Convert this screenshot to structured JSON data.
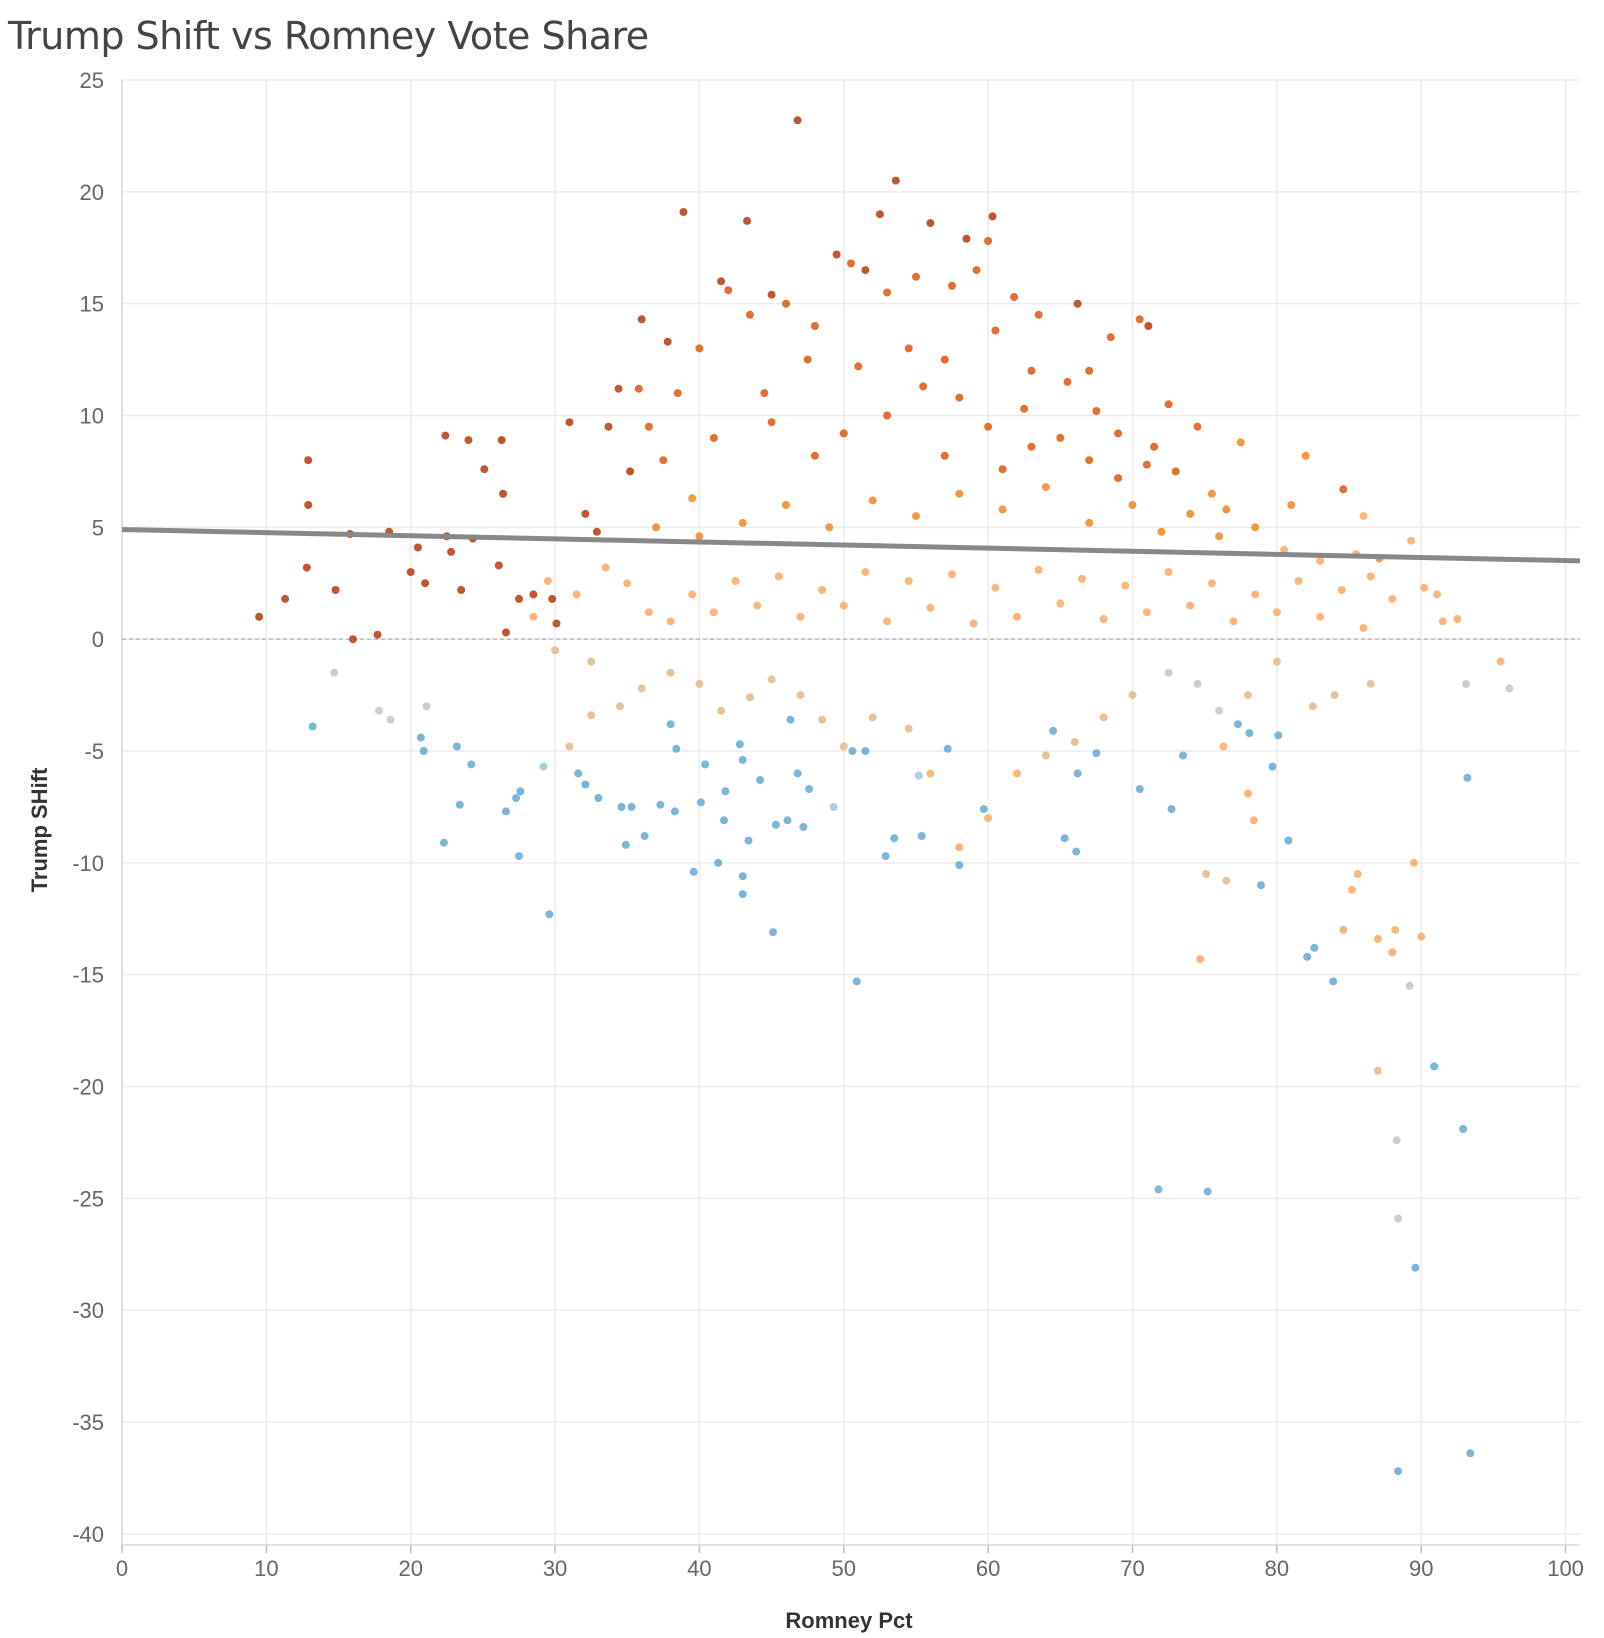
{
  "chart_data": {
    "type": "scatter",
    "title": "Trump Shift vs Romney Vote Share",
    "xlabel": "Romney Pct",
    "ylabel": "Trump SHift",
    "xlim": [
      0,
      101
    ],
    "ylim": [
      -40.5,
      25
    ],
    "x_ticks": [
      0,
      10,
      20,
      30,
      40,
      50,
      60,
      70,
      80,
      90,
      100
    ],
    "y_ticks": [
      25,
      20,
      15,
      10,
      5,
      0,
      -5,
      -10,
      -15,
      -20,
      -25,
      -30,
      -35,
      -40
    ],
    "grid": true,
    "zero_line": 0,
    "trend_line": {
      "x": [
        0,
        101
      ],
      "y": [
        4.9,
        3.5
      ]
    },
    "colors": {
      "grid": "#ebebeb",
      "trend": "#888888",
      "blue": "#6baed6",
      "light_blue": "#9ecae1",
      "gray": "#c6c9c4",
      "tan": "#e3bc8f",
      "light_orange": "#fdae6b",
      "orange": "#f28e2b",
      "dark_orange": "#e0601a",
      "red_orange": "#b8451a"
    },
    "points": [
      [
        46.8,
        23.2,
        1
      ],
      [
        53.6,
        20.5,
        1
      ],
      [
        38.9,
        19.1,
        1
      ],
      [
        43.3,
        18.7,
        1
      ],
      [
        52.5,
        19.0,
        1
      ],
      [
        56.0,
        18.6,
        1
      ],
      [
        60.3,
        18.9,
        1
      ],
      [
        58.5,
        17.9,
        1
      ],
      [
        49.5,
        17.2,
        1
      ],
      [
        51.5,
        16.5,
        1
      ],
      [
        41.5,
        16.0,
        1
      ],
      [
        45.0,
        15.4,
        1
      ],
      [
        36.0,
        14.3,
        1
      ],
      [
        66.2,
        15.0,
        1
      ],
      [
        71.1,
        14.0,
        1
      ],
      [
        37.8,
        13.3,
        1
      ],
      [
        34.4,
        11.2,
        1
      ],
      [
        33.7,
        9.5,
        1
      ],
      [
        31.0,
        9.7,
        1
      ],
      [
        26.3,
        8.9,
        1
      ],
      [
        24.0,
        8.9,
        1
      ],
      [
        22.4,
        9.1,
        1
      ],
      [
        25.1,
        7.6,
        1
      ],
      [
        26.4,
        6.5,
        1
      ],
      [
        12.9,
        8.0,
        1
      ],
      [
        12.9,
        6.0,
        1
      ],
      [
        9.5,
        1.0,
        0
      ],
      [
        11.3,
        1.8,
        0
      ],
      [
        12.8,
        3.2,
        0
      ],
      [
        14.8,
        2.2,
        0
      ],
      [
        16.0,
        0.0,
        0
      ],
      [
        17.7,
        0.2,
        0
      ],
      [
        15.8,
        4.7,
        0
      ],
      [
        18.5,
        4.8,
        0
      ],
      [
        20.5,
        4.1,
        0
      ],
      [
        22.5,
        4.6,
        1
      ],
      [
        22.8,
        3.9,
        1
      ],
      [
        24.3,
        4.5,
        0
      ],
      [
        26.1,
        3.3,
        0
      ],
      [
        20.0,
        3.0,
        0
      ],
      [
        21.0,
        2.5,
        0
      ],
      [
        23.5,
        2.2,
        0
      ],
      [
        26.6,
        0.3,
        0
      ],
      [
        27.5,
        1.8,
        0
      ],
      [
        28.5,
        2.0,
        0
      ],
      [
        29.8,
        1.8,
        1
      ],
      [
        30.1,
        0.7,
        0
      ],
      [
        32.1,
        5.6,
        0
      ],
      [
        32.9,
        4.8,
        1
      ],
      [
        35.2,
        7.5,
        1
      ],
      [
        18.6,
        -3.6,
        2
      ],
      [
        17.8,
        -3.2,
        2
      ],
      [
        14.7,
        -1.5,
        2
      ],
      [
        21.1,
        -3.0,
        2
      ],
      [
        13.2,
        -3.9,
        3
      ],
      [
        20.7,
        -4.4,
        3
      ],
      [
        20.9,
        -5.0,
        3
      ],
      [
        23.2,
        -4.8,
        3
      ],
      [
        24.2,
        -5.6,
        3
      ],
      [
        23.4,
        -7.4,
        3
      ],
      [
        22.3,
        -9.1,
        3
      ],
      [
        27.5,
        -9.7,
        3
      ],
      [
        26.6,
        -7.7,
        3
      ],
      [
        27.3,
        -7.1,
        3
      ],
      [
        27.6,
        -6.8,
        3
      ],
      [
        29.2,
        -5.7,
        4
      ],
      [
        29.6,
        -12.3,
        3
      ],
      [
        31.6,
        -6.0,
        3
      ],
      [
        32.1,
        -6.5,
        3
      ],
      [
        33.0,
        -7.1,
        3
      ],
      [
        34.6,
        -7.5,
        3
      ],
      [
        35.3,
        -7.5,
        3
      ],
      [
        36.2,
        -8.8,
        3
      ],
      [
        34.9,
        -9.2,
        3
      ],
      [
        37.3,
        -7.4,
        3
      ],
      [
        38.0,
        -3.8,
        3
      ],
      [
        38.4,
        -4.9,
        3
      ],
      [
        38.3,
        -7.7,
        3
      ],
      [
        39.6,
        -10.4,
        3
      ],
      [
        40.1,
        -7.3,
        3
      ],
      [
        41.3,
        -10.0,
        3
      ],
      [
        40.4,
        -5.6,
        3
      ],
      [
        41.8,
        -6.8,
        3
      ],
      [
        41.7,
        -8.1,
        3
      ],
      [
        43.0,
        -5.4,
        3
      ],
      [
        43.4,
        -9.0,
        3
      ],
      [
        42.8,
        -4.7,
        3
      ],
      [
        44.2,
        -6.3,
        3
      ],
      [
        45.3,
        -8.3,
        3
      ],
      [
        46.1,
        -8.1,
        3
      ],
      [
        46.3,
        -3.6,
        3
      ],
      [
        46.8,
        -6.0,
        3
      ],
      [
        47.2,
        -8.4,
        3
      ],
      [
        47.6,
        -6.7,
        3
      ],
      [
        49.3,
        -7.5,
        4
      ],
      [
        50.6,
        -5.0,
        3
      ],
      [
        51.5,
        -5.0,
        3
      ],
      [
        52.9,
        -9.7,
        3
      ],
      [
        53.5,
        -8.9,
        3
      ],
      [
        55.4,
        -8.8,
        3
      ],
      [
        55.2,
        -6.1,
        4
      ],
      [
        57.2,
        -4.9,
        3
      ],
      [
        58.0,
        -10.1,
        3
      ],
      [
        59.7,
        -7.6,
        3
      ],
      [
        64.5,
        -4.1,
        3
      ],
      [
        65.3,
        -8.9,
        3
      ],
      [
        66.1,
        -9.5,
        3
      ],
      [
        66.2,
        -6.0,
        3
      ],
      [
        67.5,
        -5.1,
        3
      ],
      [
        70.5,
        -6.7,
        3
      ],
      [
        72.7,
        -7.6,
        3
      ],
      [
        73.5,
        -5.2,
        3
      ],
      [
        77.3,
        -3.8,
        3
      ],
      [
        78.1,
        -4.2,
        3
      ],
      [
        79.7,
        -5.7,
        3
      ],
      [
        80.1,
        -4.3,
        3
      ],
      [
        80.8,
        -9.0,
        3
      ],
      [
        82.1,
        -14.2,
        3
      ],
      [
        82.6,
        -13.8,
        3
      ],
      [
        83.9,
        -15.3,
        3
      ],
      [
        78.9,
        -11.0,
        3
      ],
      [
        84.6,
        -13.0,
        6
      ],
      [
        85.2,
        -11.2,
        6
      ],
      [
        85.6,
        -10.5,
        6
      ],
      [
        87.0,
        -13.4,
        6
      ],
      [
        88.0,
        -14.0,
        6
      ],
      [
        88.2,
        -13.0,
        6
      ],
      [
        89.5,
        -10.0,
        6
      ],
      [
        90.0,
        -13.3,
        6
      ],
      [
        89.2,
        -15.5,
        2
      ],
      [
        88.3,
        -22.4,
        2
      ],
      [
        88.4,
        -25.9,
        2
      ],
      [
        89.6,
        -28.1,
        3
      ],
      [
        88.4,
        -37.2,
        3
      ],
      [
        93.4,
        -36.4,
        3
      ],
      [
        92.9,
        -21.9,
        3
      ],
      [
        90.9,
        -19.1,
        3
      ],
      [
        87.0,
        -19.3,
        5
      ],
      [
        71.8,
        -24.6,
        3
      ],
      [
        75.2,
        -24.7,
        3
      ],
      [
        50.9,
        -15.3,
        3
      ],
      [
        45.1,
        -13.1,
        3
      ],
      [
        43.0,
        -11.4,
        3
      ],
      [
        43.0,
        -10.6,
        3
      ],
      [
        74.7,
        -14.3,
        6
      ],
      [
        75.1,
        -10.5,
        5
      ],
      [
        76.5,
        -10.8,
        5
      ],
      [
        78.4,
        -8.1,
        6
      ],
      [
        78.0,
        -6.9,
        6
      ],
      [
        76.3,
        -4.8,
        6
      ],
      [
        93.2,
        -6.2,
        3
      ],
      [
        93.1,
        -2.0,
        2
      ],
      [
        96.1,
        -2.2,
        2
      ],
      [
        95.5,
        -1.0,
        6
      ],
      [
        92.5,
        0.9,
        6
      ],
      [
        91.5,
        0.8,
        6
      ],
      [
        91.1,
        2.0,
        6
      ],
      [
        90.2,
        2.3,
        6
      ],
      [
        89.3,
        4.4,
        6
      ],
      [
        87.1,
        3.6,
        7
      ],
      [
        86.0,
        5.5,
        6
      ],
      [
        84.6,
        6.7,
        8
      ],
      [
        82.0,
        8.2,
        7
      ],
      [
        81.0,
        6.0,
        7
      ],
      [
        77.5,
        8.8,
        7
      ],
      [
        74.5,
        9.5,
        8
      ],
      [
        72.5,
        10.5,
        8
      ],
      [
        70.5,
        14.3,
        8
      ],
      [
        68.5,
        13.5,
        8
      ],
      [
        67.0,
        12.0,
        8
      ],
      [
        63.5,
        14.5,
        8
      ],
      [
        61.8,
        15.3,
        8
      ],
      [
        60.0,
        17.8,
        9
      ],
      [
        59.2,
        16.5,
        9
      ],
      [
        57.5,
        15.8,
        9
      ],
      [
        55.0,
        16.2,
        9
      ],
      [
        53.0,
        15.5,
        9
      ],
      [
        50.5,
        16.8,
        9
      ],
      [
        48.0,
        14.0,
        9
      ],
      [
        46.0,
        15.0,
        9
      ],
      [
        43.5,
        14.5,
        9
      ],
      [
        42.0,
        15.6,
        9
      ],
      [
        40.0,
        13.0,
        9
      ],
      [
        38.5,
        11.0,
        9
      ],
      [
        36.5,
        9.5,
        8
      ],
      [
        35.8,
        11.2,
        8
      ],
      [
        37.5,
        8.0,
        8
      ],
      [
        39.5,
        6.3,
        7
      ],
      [
        41.0,
        9.0,
        8
      ],
      [
        44.5,
        11.0,
        9
      ],
      [
        47.5,
        12.5,
        9
      ],
      [
        51.0,
        12.2,
        9
      ],
      [
        54.5,
        13.0,
        9
      ],
      [
        57.0,
        12.5,
        9
      ],
      [
        60.5,
        13.8,
        9
      ],
      [
        63.0,
        12.0,
        8
      ],
      [
        65.5,
        11.5,
        8
      ],
      [
        67.5,
        10.2,
        8
      ],
      [
        69.0,
        9.2,
        8
      ],
      [
        71.5,
        8.6,
        8
      ],
      [
        73.0,
        7.5,
        8
      ],
      [
        75.5,
        6.5,
        7
      ],
      [
        76.5,
        5.8,
        7
      ],
      [
        78.5,
        5.0,
        7
      ],
      [
        80.5,
        4.0,
        6
      ],
      [
        83.0,
        3.5,
        6
      ],
      [
        85.5,
        3.8,
        6
      ],
      [
        86.5,
        2.8,
        6
      ],
      [
        88.0,
        1.8,
        6
      ],
      [
        86.5,
        -2.0,
        5
      ],
      [
        84.0,
        -2.5,
        5
      ],
      [
        82.5,
        -3.0,
        5
      ],
      [
        80.0,
        -1.0,
        5
      ],
      [
        78.0,
        -2.5,
        5
      ],
      [
        76.0,
        -3.2,
        2
      ],
      [
        74.5,
        -2.0,
        2
      ],
      [
        72.5,
        -1.5,
        2
      ],
      [
        70.0,
        -2.5,
        5
      ],
      [
        68.0,
        -3.5,
        5
      ],
      [
        66.0,
        -4.6,
        5
      ],
      [
        64.0,
        -5.2,
        5
      ],
      [
        62.0,
        -6.0,
        6
      ],
      [
        60.0,
        -8.0,
        6
      ],
      [
        58.0,
        -9.3,
        6
      ],
      [
        56.0,
        -6.0,
        6
      ],
      [
        54.5,
        -4.0,
        5
      ],
      [
        52.0,
        -3.5,
        5
      ],
      [
        50.0,
        -4.8,
        5
      ],
      [
        48.5,
        -3.6,
        5
      ],
      [
        47.0,
        -2.5,
        5
      ],
      [
        45.0,
        -1.8,
        5
      ],
      [
        43.5,
        -2.6,
        5
      ],
      [
        41.5,
        -3.2,
        5
      ],
      [
        40.0,
        -2.0,
        5
      ],
      [
        38.0,
        -1.5,
        5
      ],
      [
        36.0,
        -2.2,
        5
      ],
      [
        34.5,
        -3.0,
        5
      ],
      [
        32.5,
        -3.4,
        5
      ],
      [
        31.0,
        -4.8,
        5
      ],
      [
        32.5,
        -1.0,
        5
      ],
      [
        30.0,
        -0.5,
        5
      ],
      [
        28.5,
        1.0,
        6
      ],
      [
        29.5,
        2.6,
        6
      ],
      [
        31.5,
        2.0,
        6
      ],
      [
        33.5,
        3.2,
        6
      ],
      [
        35.0,
        2.5,
        6
      ],
      [
        36.5,
        1.2,
        6
      ],
      [
        38.0,
        0.8,
        6
      ],
      [
        39.5,
        2.0,
        6
      ],
      [
        41.0,
        1.2,
        6
      ],
      [
        42.5,
        2.6,
        6
      ],
      [
        44.0,
        1.5,
        6
      ],
      [
        45.5,
        2.8,
        6
      ],
      [
        47.0,
        1.0,
        6
      ],
      [
        48.5,
        2.2,
        6
      ],
      [
        50.0,
        1.5,
        6
      ],
      [
        51.5,
        3.0,
        6
      ],
      [
        53.0,
        0.8,
        6
      ],
      [
        54.5,
        2.6,
        6
      ],
      [
        56.0,
        1.4,
        6
      ],
      [
        57.5,
        2.9,
        6
      ],
      [
        59.0,
        0.7,
        6
      ],
      [
        60.5,
        2.3,
        6
      ],
      [
        62.0,
        1.0,
        6
      ],
      [
        63.5,
        3.1,
        6
      ],
      [
        65.0,
        1.6,
        6
      ],
      [
        66.5,
        2.7,
        6
      ],
      [
        68.0,
        0.9,
        6
      ],
      [
        69.5,
        2.4,
        6
      ],
      [
        71.0,
        1.2,
        6
      ],
      [
        72.5,
        3.0,
        6
      ],
      [
        74.0,
        1.5,
        6
      ],
      [
        75.5,
        2.5,
        6
      ],
      [
        77.0,
        0.8,
        6
      ],
      [
        78.5,
        2.0,
        6
      ],
      [
        80.0,
        1.2,
        6
      ],
      [
        81.5,
        2.6,
        6
      ],
      [
        83.0,
        1.0,
        6
      ],
      [
        84.5,
        2.2,
        6
      ],
      [
        86.0,
        0.5,
        6
      ],
      [
        55.0,
        5.5,
        7
      ],
      [
        58.0,
        6.5,
        7
      ],
      [
        61.0,
        5.8,
        7
      ],
      [
        64.0,
        6.8,
        7
      ],
      [
        67.0,
        5.2,
        7
      ],
      [
        70.0,
        6.0,
        7
      ],
      [
        72.0,
        4.8,
        7
      ],
      [
        74.0,
        5.6,
        7
      ],
      [
        76.0,
        4.6,
        7
      ],
      [
        52.0,
        6.2,
        7
      ],
      [
        49.0,
        5.0,
        7
      ],
      [
        46.0,
        6.0,
        7
      ],
      [
        43.0,
        5.2,
        7
      ],
      [
        40.0,
        4.6,
        7
      ],
      [
        37.0,
        5.0,
        7
      ],
      [
        60.0,
        9.5,
        8
      ],
      [
        62.5,
        10.3,
        8
      ],
      [
        65.0,
        9.0,
        8
      ],
      [
        67.0,
        8.0,
        8
      ],
      [
        58.0,
        10.8,
        8
      ],
      [
        55.5,
        11.3,
        9
      ],
      [
        53.0,
        10.0,
        8
      ],
      [
        50.0,
        9.2,
        8
      ],
      [
        48.0,
        8.2,
        8
      ],
      [
        45.0,
        9.7,
        8
      ],
      [
        57.0,
        8.2,
        8
      ],
      [
        63.0,
        8.6,
        8
      ],
      [
        69.0,
        7.2,
        8
      ],
      [
        71.0,
        7.8,
        8
      ],
      [
        61.0,
        7.6,
        8
      ]
    ]
  }
}
